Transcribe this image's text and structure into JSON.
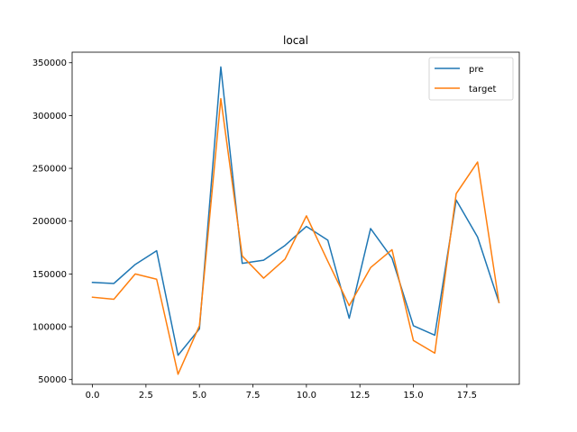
{
  "chart_data": {
    "type": "line",
    "title": "local",
    "xlabel": "",
    "ylabel": "",
    "x": [
      0,
      1,
      2,
      3,
      4,
      5,
      6,
      7,
      8,
      9,
      10,
      11,
      12,
      13,
      14,
      15,
      16,
      17,
      18,
      19
    ],
    "xlim": [
      -0.95,
      19.95
    ],
    "ylim": [
      45500,
      360000
    ],
    "xticks": [
      0.0,
      2.5,
      5.0,
      7.5,
      10.0,
      12.5,
      15.0,
      17.5
    ],
    "xtick_labels": [
      "0.0",
      "2.5",
      "5.0",
      "7.5",
      "10.0",
      "12.5",
      "15.0",
      "17.5"
    ],
    "yticks": [
      50000,
      100000,
      150000,
      200000,
      250000,
      300000,
      350000
    ],
    "ytick_labels": [
      "50000",
      "100000",
      "150000",
      "200000",
      "250000",
      "300000",
      "350000"
    ],
    "grid": false,
    "legend_position": "top-right",
    "series": [
      {
        "name": "pre",
        "color": "#1f77b4",
        "values": [
          142000,
          141000,
          159000,
          172000,
          73000,
          98000,
          346000,
          160000,
          163000,
          177000,
          195000,
          182000,
          108000,
          193000,
          165000,
          101000,
          92000,
          220000,
          185000,
          123000
        ]
      },
      {
        "name": "target",
        "color": "#ff7f0e",
        "values": [
          128000,
          126000,
          150000,
          145000,
          55000,
          101000,
          316000,
          167000,
          146000,
          164000,
          205000,
          162000,
          120000,
          156000,
          173000,
          87000,
          75000,
          226000,
          256000,
          123000
        ]
      }
    ]
  }
}
